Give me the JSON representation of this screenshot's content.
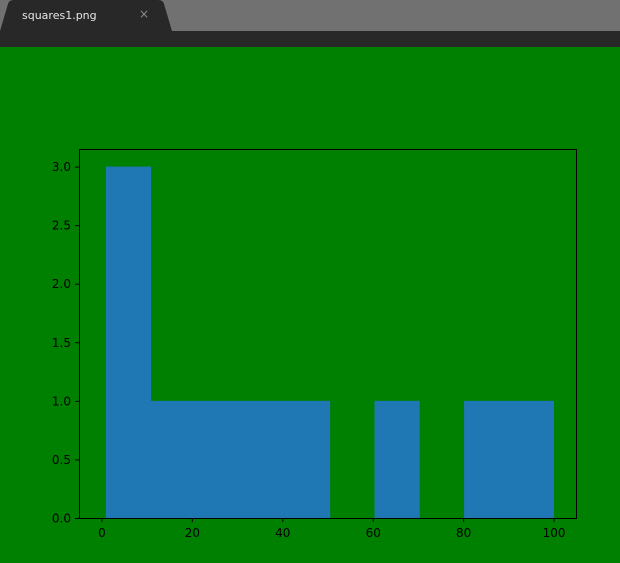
{
  "tab": {
    "title": "squares1.png",
    "close_glyph": "×"
  },
  "colors": {
    "tabbar_bg": "#717171",
    "tab_active_bg": "#282828",
    "viewer_bg": "#008000",
    "bar_color": "#1f77b4"
  },
  "chart_data": {
    "type": "bar",
    "title": "",
    "xlabel": "",
    "ylabel": "",
    "xlim": [
      -4.95,
      104.95
    ],
    "ylim": [
      0,
      3.15
    ],
    "bins": [
      {
        "x0": 1,
        "x1": 10.9,
        "count": 3
      },
      {
        "x0": 10.9,
        "x1": 20.8,
        "count": 1
      },
      {
        "x0": 20.8,
        "x1": 30.7,
        "count": 1
      },
      {
        "x0": 30.7,
        "x1": 40.6,
        "count": 1
      },
      {
        "x0": 40.6,
        "x1": 50.5,
        "count": 1
      },
      {
        "x0": 50.5,
        "x1": 60.4,
        "count": 0
      },
      {
        "x0": 60.4,
        "x1": 70.3,
        "count": 1
      },
      {
        "x0": 70.3,
        "x1": 80.2,
        "count": 0
      },
      {
        "x0": 80.2,
        "x1": 90.1,
        "count": 1
      },
      {
        "x0": 90.1,
        "x1": 100,
        "count": 1
      }
    ],
    "xticks": [
      "0",
      "20",
      "40",
      "60",
      "80",
      "100"
    ],
    "yticks": [
      "0.0",
      "0.5",
      "1.0",
      "1.5",
      "2.0",
      "2.5",
      "3.0"
    ],
    "grid": false,
    "legend": "none"
  }
}
